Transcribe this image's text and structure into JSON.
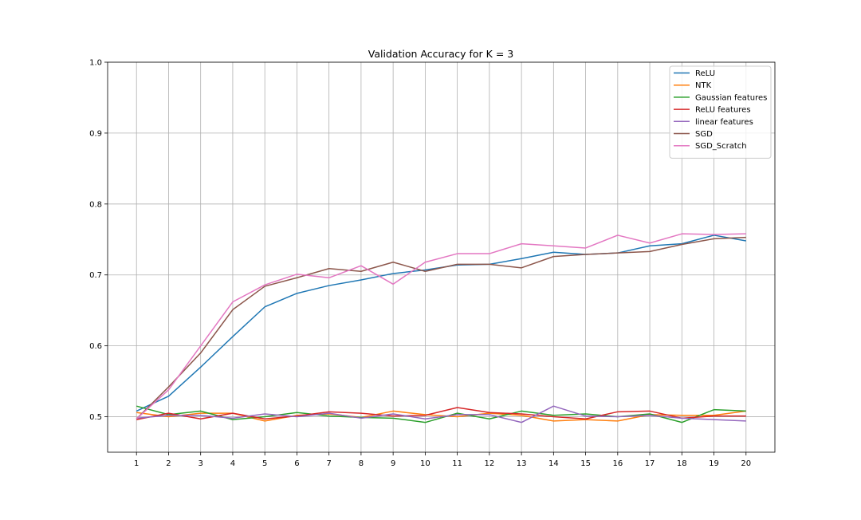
{
  "chart_data": {
    "type": "line",
    "title": "Validation Accuracy for K = 3",
    "xlabel": "",
    "ylabel": "",
    "x": [
      1,
      2,
      3,
      4,
      5,
      6,
      7,
      8,
      9,
      10,
      11,
      12,
      13,
      14,
      15,
      16,
      17,
      18,
      19,
      20
    ],
    "ylim": [
      0.45,
      1.0
    ],
    "xlim": [
      0.1,
      20.9
    ],
    "yticks": [
      0.5,
      0.6,
      0.7,
      0.8,
      0.9,
      1.0
    ],
    "ytick_labels": [
      "0.5",
      "0.6",
      "0.7",
      "0.8",
      "0.9",
      "1.0"
    ],
    "xtick_labels": [
      "1",
      "2",
      "3",
      "4",
      "5",
      "6",
      "7",
      "8",
      "9",
      "10",
      "11",
      "12",
      "13",
      "14",
      "15",
      "16",
      "17",
      "18",
      "19",
      "20"
    ],
    "grid": true,
    "legend_position": "top-right",
    "series": [
      {
        "name": "ReLU",
        "color": "#1f77b4",
        "values": [
          0.508,
          0.529,
          0.57,
          0.613,
          0.655,
          0.674,
          0.685,
          0.693,
          0.702,
          0.707,
          0.714,
          0.715,
          0.723,
          0.732,
          0.729,
          0.731,
          0.741,
          0.744,
          0.756,
          0.748
        ]
      },
      {
        "name": "NTK",
        "color": "#ff7f0e",
        "values": [
          0.506,
          0.5,
          0.505,
          0.505,
          0.494,
          0.502,
          0.504,
          0.499,
          0.508,
          0.503,
          0.5,
          0.505,
          0.502,
          0.494,
          0.496,
          0.494,
          0.503,
          0.502,
          0.502,
          0.508
        ]
      },
      {
        "name": "Gaussian features",
        "color": "#2ca02c",
        "values": [
          0.515,
          0.503,
          0.508,
          0.496,
          0.5,
          0.506,
          0.501,
          0.499,
          0.498,
          0.492,
          0.505,
          0.497,
          0.508,
          0.502,
          0.504,
          0.5,
          0.504,
          0.492,
          0.51,
          0.508
        ]
      },
      {
        "name": "ReLU features",
        "color": "#d62728",
        "values": [
          0.496,
          0.505,
          0.497,
          0.505,
          0.497,
          0.501,
          0.507,
          0.505,
          0.501,
          0.502,
          0.513,
          0.506,
          0.504,
          0.5,
          0.497,
          0.507,
          0.508,
          0.498,
          0.501,
          0.501
        ]
      },
      {
        "name": "linear features",
        "color": "#9467bd",
        "values": [
          0.498,
          0.502,
          0.502,
          0.498,
          0.504,
          0.5,
          0.505,
          0.498,
          0.504,
          0.497,
          0.503,
          0.503,
          0.492,
          0.515,
          0.501,
          0.5,
          0.502,
          0.498,
          0.496,
          0.494
        ]
      },
      {
        "name": "SGD",
        "color": "#8c564b",
        "values": [
          0.497,
          0.542,
          0.59,
          0.651,
          0.684,
          0.696,
          0.709,
          0.705,
          0.718,
          0.705,
          0.715,
          0.715,
          0.71,
          0.726,
          0.729,
          0.731,
          0.733,
          0.743,
          0.751,
          0.753
        ]
      },
      {
        "name": "SGD_Scratch",
        "color": "#e377c2",
        "values": [
          0.497,
          0.538,
          0.6,
          0.662,
          0.686,
          0.701,
          0.696,
          0.713,
          0.687,
          0.718,
          0.73,
          0.73,
          0.744,
          0.741,
          0.738,
          0.756,
          0.745,
          0.758,
          0.757,
          0.758
        ]
      }
    ]
  }
}
